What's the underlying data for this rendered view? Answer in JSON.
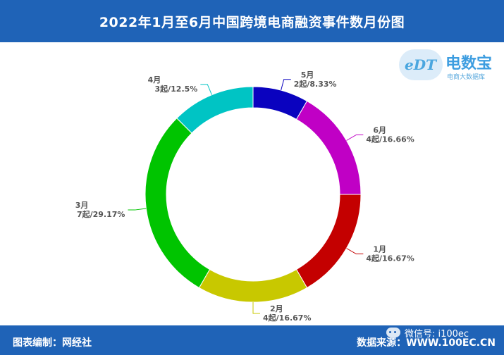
{
  "header": {
    "title": "2022年1月至6月中国跨境电商融资事件数月份图"
  },
  "footer": {
    "left": "图表编制：网经社",
    "right": "数据来源：WWW.100EC.CN",
    "wechat": "微信号: i100ec"
  },
  "logo": {
    "name": "电数宝",
    "sub": "电商大数据库",
    "mark": "eDT"
  },
  "chart_data": {
    "type": "pie",
    "subtype": "donut",
    "title": "2022年1月至6月中国跨境电商融资事件数月份图",
    "slices": [
      {
        "label": "5月",
        "value": 2,
        "value_label": "2起/8.33%",
        "color": "#0a02bf"
      },
      {
        "label": "6月",
        "value": 4,
        "value_label": "4起/16.66%",
        "color": "#c000c5"
      },
      {
        "label": "1月",
        "value": 4,
        "value_label": "4起/16.67%",
        "color": "#c40000"
      },
      {
        "label": "2月",
        "value": 4,
        "value_label": "4起/16.67%",
        "color": "#c8c800"
      },
      {
        "label": "3月",
        "value": 7,
        "value_label": "7起/29.17%",
        "color": "#00c400"
      },
      {
        "label": "4月",
        "value": 3,
        "value_label": "3起/12.5%",
        "color": "#00c4c4"
      }
    ]
  }
}
